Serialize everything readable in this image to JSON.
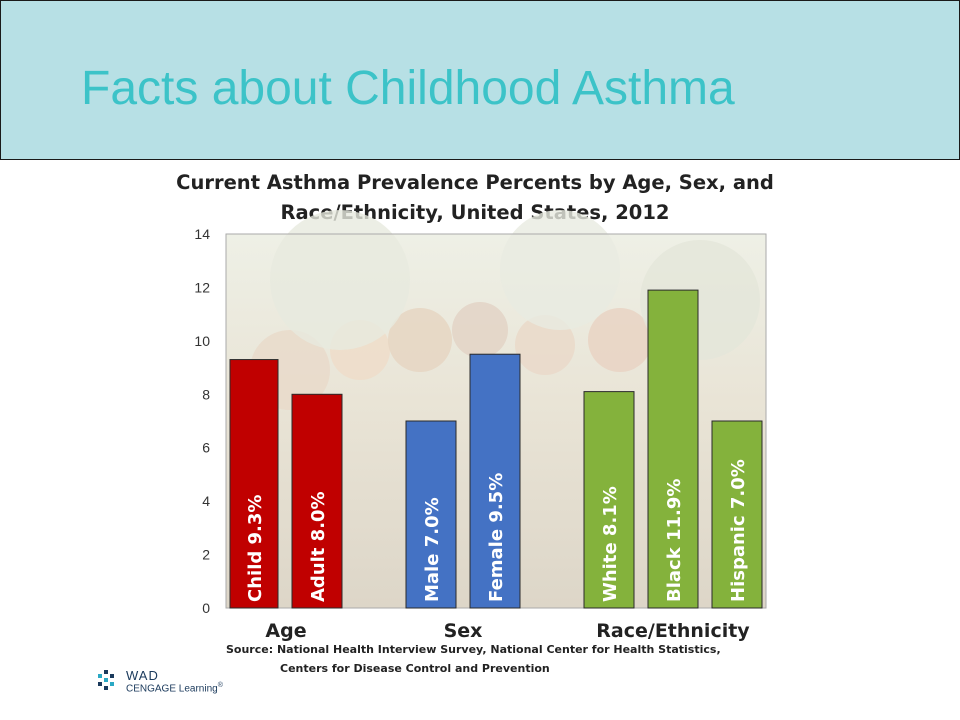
{
  "slide": {
    "title": "Facts about Childhood Asthma"
  },
  "chart_data": {
    "type": "bar",
    "title_line1": "Current Asthma Prevalence Percents by Age, Sex, and",
    "title_line2": "Race/Ethnicity, United States, 2012",
    "ylim": [
      0,
      14
    ],
    "yticks": [
      0,
      2,
      4,
      6,
      8,
      10,
      12,
      14
    ],
    "grid": false,
    "background": "photograph of children (faded)",
    "groups": [
      {
        "name": "Age",
        "color": "#c00000",
        "bars": [
          {
            "category": "Child",
            "value": 9.3,
            "label": "Child 9.3%"
          },
          {
            "category": "Adult",
            "value": 8.0,
            "label": "Adult 8.0%"
          }
        ]
      },
      {
        "name": "Sex",
        "color": "#4472c4",
        "bars": [
          {
            "category": "Male",
            "value": 7.0,
            "label": "Male 7.0%"
          },
          {
            "category": "Female",
            "value": 9.5,
            "label": "Female 9.5%"
          }
        ]
      },
      {
        "name": "Race/Ethnicity",
        "color": "#84b23c",
        "bars": [
          {
            "category": "White",
            "value": 8.1,
            "label": "White 8.1%"
          },
          {
            "category": "Black",
            "value": 11.9,
            "label": "Black 11.9%"
          },
          {
            "category": "Hispanic",
            "value": 7.0,
            "label": "Hispanic 7.0%"
          }
        ]
      }
    ],
    "source_line1": "Source: National Health Interview Survey, National Center for Health Statistics,",
    "source_line2": "Centers for Disease Control and Prevention"
  },
  "logo": {
    "top": "WAD",
    "bottom": "CENGAGE Learning",
    "mark": "®"
  }
}
